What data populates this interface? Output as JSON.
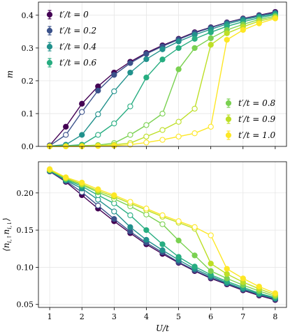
{
  "chart_data": [
    {
      "type": "line",
      "panel": "top",
      "ylabel": "m",
      "xlabel": "",
      "x": [
        1,
        1.5,
        2,
        2.5,
        3,
        3.5,
        4,
        4.5,
        5,
        5.5,
        6,
        6.5,
        7,
        7.5,
        8
      ],
      "xlim": [
        0.65,
        8.35
      ],
      "ylim": [
        0,
        0.44
      ],
      "xticks": [
        "1",
        "2",
        "3",
        "4",
        "5",
        "6",
        "7",
        "8"
      ],
      "yticks": [
        "0.0",
        "0.1",
        "0.2",
        "0.3",
        "0.4"
      ],
      "ytick_values": [
        0,
        0.1,
        0.2,
        0.3,
        0.4
      ],
      "grid": true,
      "legend": [
        {
          "placement": "top-left",
          "entries": [
            "$t'/t = 0$",
            "$t'/t = 0.2$",
            "$t'/t = 0.4$",
            "$t'/t = 0.6$"
          ]
        },
        {
          "placement": "center-right",
          "entries": [
            "$t'/t = 0.8$",
            "$t'/t = 0.9$",
            "$t'/t = 1.0$"
          ]
        }
      ],
      "series": [
        {
          "name": "t'/t = 0",
          "label_main": "t′/t = 0",
          "color": "#440154",
          "values": [
            0.003,
            0.06,
            0.13,
            0.183,
            0.225,
            0.258,
            0.285,
            0.308,
            0.328,
            0.348,
            0.363,
            0.378,
            0.39,
            0.4,
            0.41
          ],
          "open": [
            false,
            false,
            false,
            false,
            false,
            false,
            false,
            false,
            false,
            false,
            false,
            false,
            false,
            false,
            false
          ]
        },
        {
          "name": "t'/t = 0.2",
          "label_main": "t′/t = 0.2",
          "color": "#3b528b",
          "values": [
            0.002,
            0.035,
            0.105,
            0.17,
            0.218,
            0.254,
            0.282,
            0.305,
            0.326,
            0.346,
            0.362,
            0.377,
            0.389,
            0.399,
            0.408
          ],
          "open": [
            false,
            true,
            true,
            false,
            false,
            false,
            false,
            false,
            false,
            false,
            false,
            false,
            false,
            false,
            false
          ]
        },
        {
          "name": "t'/t = 0.4",
          "label_main": "t′/t = 0.4",
          "color": "#21918c",
          "values": [
            0.001,
            0.005,
            0.035,
            0.098,
            0.168,
            0.225,
            0.266,
            0.296,
            0.32,
            0.34,
            0.357,
            0.373,
            0.386,
            0.396,
            0.405
          ],
          "open": [
            false,
            false,
            false,
            true,
            true,
            false,
            false,
            false,
            false,
            false,
            false,
            false,
            false,
            false,
            false
          ]
        },
        {
          "name": "t'/t = 0.6",
          "label_main": "t′/t = 0.6",
          "color": "#27ad81",
          "values": [
            0.001,
            0.002,
            0.005,
            0.035,
            0.07,
            0.122,
            0.21,
            0.265,
            0.3,
            0.328,
            0.348,
            0.366,
            0.38,
            0.392,
            0.402
          ],
          "open": [
            false,
            false,
            false,
            true,
            true,
            true,
            false,
            false,
            false,
            false,
            false,
            false,
            false,
            false,
            false
          ]
        },
        {
          "name": "t'/t = 0.8",
          "label_main": "t′/t = 0.8",
          "color": "#7ad151",
          "values": [
            0.0,
            0.001,
            0.002,
            0.004,
            0.01,
            0.035,
            0.065,
            0.1,
            0.235,
            0.3,
            0.33,
            0.355,
            0.372,
            0.387,
            0.397
          ],
          "open": [
            false,
            false,
            false,
            false,
            true,
            true,
            true,
            true,
            false,
            false,
            false,
            false,
            false,
            false,
            false
          ]
        },
        {
          "name": "t'/t = 0.9",
          "label_main": "t′/t = 0.9",
          "color": "#bddf26",
          "values": [
            0.0,
            0.0,
            0.001,
            0.002,
            0.005,
            0.01,
            0.03,
            0.05,
            0.075,
            0.115,
            0.31,
            0.345,
            0.365,
            0.382,
            0.393
          ],
          "open": [
            false,
            false,
            false,
            false,
            false,
            true,
            true,
            true,
            true,
            true,
            false,
            false,
            false,
            false,
            false
          ]
        },
        {
          "name": "t'/t = 1.0",
          "label_main": "t′/t = 1.0",
          "color": "#fde725",
          "values": [
            0.0,
            0.0,
            0.0,
            0.001,
            0.002,
            0.005,
            0.012,
            0.02,
            0.03,
            0.04,
            0.06,
            0.325,
            0.355,
            0.375,
            0.39
          ],
          "open": [
            false,
            false,
            false,
            false,
            false,
            true,
            true,
            true,
            true,
            true,
            true,
            false,
            false,
            false,
            false
          ]
        }
      ]
    },
    {
      "type": "line",
      "panel": "bottom",
      "ylabel": "⟨n_{i,↑} n_{i,↓}⟩",
      "xlabel": "U/t",
      "x": [
        1,
        1.5,
        2,
        2.5,
        3,
        3.5,
        4,
        4.5,
        5,
        5.5,
        6,
        6.5,
        7,
        7.5,
        8
      ],
      "xlim": [
        0.65,
        8.35
      ],
      "ylim": [
        0.046,
        0.242
      ],
      "xticks": [
        "1",
        "2",
        "3",
        "4",
        "5",
        "6",
        "7",
        "8"
      ],
      "yticks": [
        "0.05",
        "0.10",
        "0.15",
        "0.20"
      ],
      "ytick_values": [
        0.05,
        0.1,
        0.15,
        0.2
      ],
      "grid": true,
      "series": [
        {
          "name": "t'/t = 0",
          "color": "#440154",
          "values": [
            0.229,
            0.215,
            0.197,
            0.179,
            0.162,
            0.146,
            0.131,
            0.118,
            0.106,
            0.095,
            0.085,
            0.077,
            0.069,
            0.062,
            0.056
          ],
          "open": [
            false,
            false,
            false,
            false,
            false,
            false,
            false,
            false,
            false,
            false,
            false,
            false,
            false,
            false,
            false
          ]
        },
        {
          "name": "t'/t = 0.2",
          "color": "#3b528b",
          "values": [
            0.229,
            0.216,
            0.201,
            0.183,
            0.165,
            0.148,
            0.133,
            0.12,
            0.107,
            0.096,
            0.086,
            0.078,
            0.07,
            0.063,
            0.057
          ],
          "open": [
            false,
            false,
            true,
            true,
            false,
            false,
            false,
            false,
            false,
            false,
            false,
            false,
            false,
            false,
            false
          ]
        },
        {
          "name": "t'/t = 0.4",
          "color": "#21918c",
          "values": [
            0.23,
            0.217,
            0.206,
            0.191,
            0.175,
            0.154,
            0.137,
            0.123,
            0.11,
            0.098,
            0.088,
            0.079,
            0.071,
            0.064,
            0.058
          ],
          "open": [
            false,
            false,
            false,
            true,
            true,
            false,
            false,
            false,
            false,
            false,
            false,
            false,
            false,
            false,
            false
          ]
        },
        {
          "name": "t'/t = 0.6",
          "color": "#27ad81",
          "values": [
            0.23,
            0.218,
            0.209,
            0.197,
            0.186,
            0.17,
            0.15,
            0.131,
            0.114,
            0.101,
            0.09,
            0.081,
            0.073,
            0.065,
            0.059
          ],
          "open": [
            false,
            false,
            false,
            true,
            true,
            true,
            false,
            false,
            false,
            false,
            false,
            false,
            false,
            false,
            false
          ]
        },
        {
          "name": "t'/t = 0.8",
          "color": "#7ad151",
          "values": [
            0.231,
            0.219,
            0.211,
            0.201,
            0.192,
            0.182,
            0.171,
            0.158,
            0.136,
            0.116,
            0.095,
            0.085,
            0.076,
            0.068,
            0.061
          ],
          "open": [
            false,
            false,
            false,
            false,
            true,
            true,
            true,
            true,
            false,
            false,
            false,
            false,
            false,
            false,
            false
          ]
        },
        {
          "name": "t'/t = 0.9",
          "color": "#bddf26",
          "values": [
            0.231,
            0.22,
            0.212,
            0.203,
            0.195,
            0.186,
            0.177,
            0.168,
            0.16,
            0.152,
            0.105,
            0.091,
            0.08,
            0.071,
            0.063
          ],
          "open": [
            false,
            false,
            false,
            false,
            false,
            true,
            true,
            true,
            true,
            true,
            false,
            false,
            false,
            false,
            false
          ]
        },
        {
          "name": "t'/t = 1.0",
          "color": "#fde725",
          "values": [
            0.232,
            0.221,
            0.214,
            0.205,
            0.197,
            0.188,
            0.179,
            0.17,
            0.162,
            0.154,
            0.143,
            0.098,
            0.085,
            0.074,
            0.065
          ],
          "open": [
            false,
            false,
            false,
            false,
            false,
            true,
            true,
            true,
            true,
            true,
            true,
            false,
            false,
            false,
            false
          ]
        }
      ]
    }
  ]
}
